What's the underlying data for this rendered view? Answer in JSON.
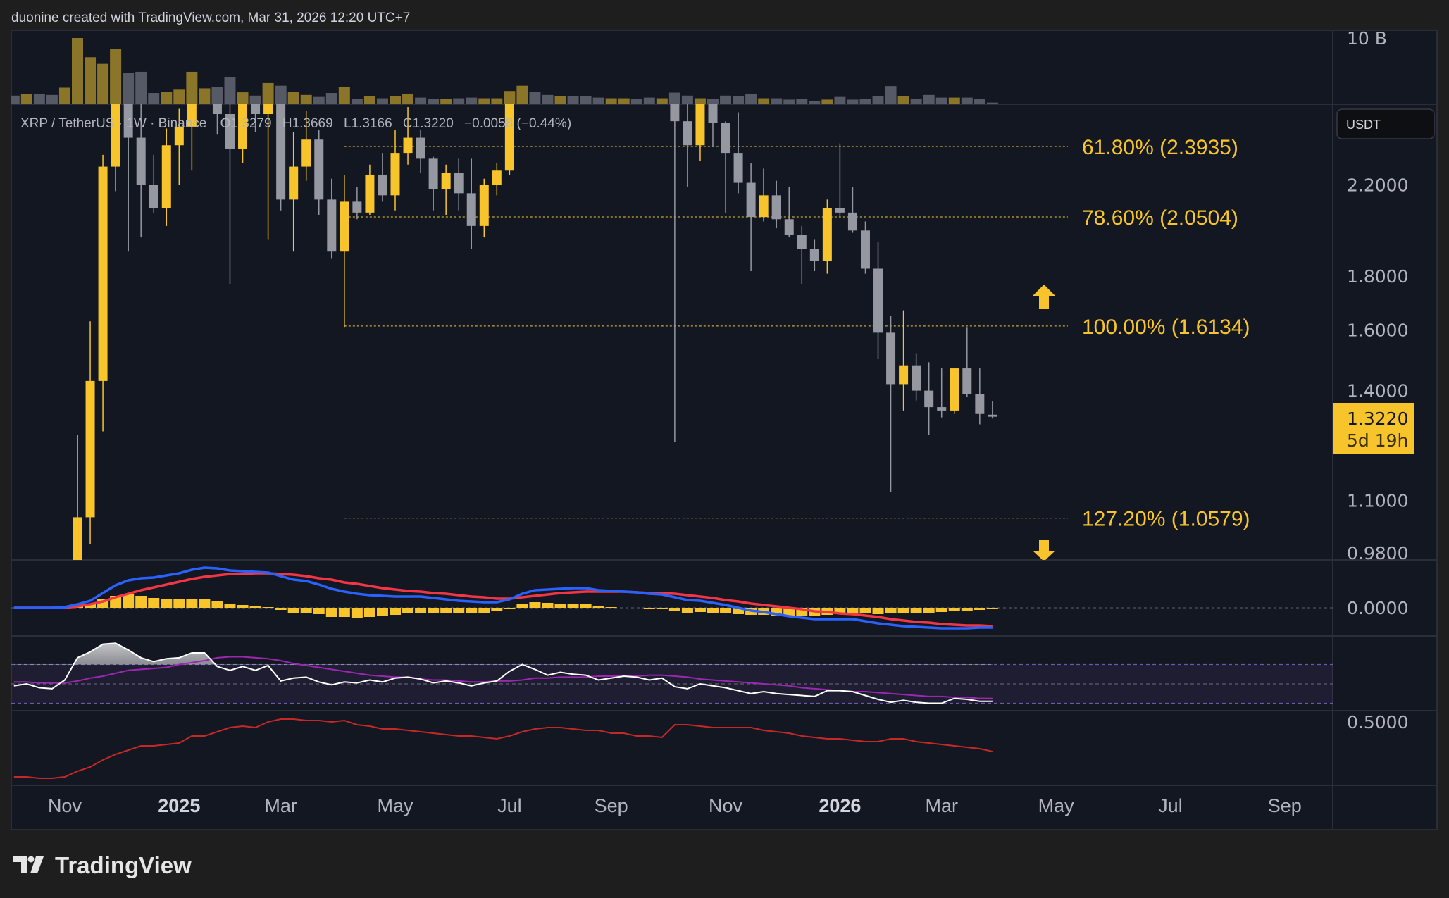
{
  "header": {
    "attribution": "duonine created with TradingView.com, Mar 31, 2026 12:20 UTC+7"
  },
  "footer": {
    "logo_text": "TradingView"
  },
  "legend": {
    "symbol": "XRP / TetherUS · 1W · Binance",
    "open": "O1.3279",
    "high": "H1.3669",
    "low": "L1.3166",
    "close": "C1.3220",
    "change": "−0.0058 (−0.44%)"
  },
  "price_axis": {
    "currency": "USDT",
    "scale": "log",
    "ticks": [
      {
        "value": 2.2,
        "label": "2.2000"
      },
      {
        "value": 1.8,
        "label": "1.8000"
      },
      {
        "value": 1.6,
        "label": "1.6000"
      },
      {
        "value": 1.4,
        "label": "1.4000"
      },
      {
        "value": 1.1,
        "label": "1.1000"
      },
      {
        "value": 0.98,
        "label": "0.9800"
      }
    ],
    "last_price": "1.3220",
    "countdown": "5d 19h"
  },
  "volume_axis": {
    "label": "10 B",
    "value": 10
  },
  "macd_axis": {
    "label": "0.0000",
    "value": 0
  },
  "indicator_axis": {
    "label": "0.5000",
    "value": 0.5
  },
  "time_axis": [
    {
      "label": "Nov",
      "date": "2024-11-04",
      "bold": false
    },
    {
      "label": "2025",
      "date": "2025-01-06",
      "bold": true
    },
    {
      "label": "Mar",
      "date": "2025-03-03",
      "bold": false
    },
    {
      "label": "May",
      "date": "2025-05-05",
      "bold": false
    },
    {
      "label": "Jul",
      "date": "2025-07-07",
      "bold": false
    },
    {
      "label": "Sep",
      "date": "2025-09-01",
      "bold": false
    },
    {
      "label": "Nov",
      "date": "2025-11-03",
      "bold": false
    },
    {
      "label": "2026",
      "date": "2026-01-05",
      "bold": true
    },
    {
      "label": "Mar",
      "date": "2026-03-02",
      "bold": false
    },
    {
      "label": "May",
      "date": "2026-05-04",
      "bold": false
    },
    {
      "label": "Jul",
      "date": "2026-07-06",
      "bold": false
    },
    {
      "label": "Sep",
      "date": "2026-09-07",
      "bold": false
    }
  ],
  "fibonacci": {
    "anchor_date": "2025-04-07",
    "end_date": "2026-05-18",
    "levels": [
      {
        "label": "61.80% (2.3935)",
        "price": 2.3935
      },
      {
        "label": "78.60% (2.0504)",
        "price": 2.0504
      },
      {
        "label": "100.00% (1.6134)",
        "price": 1.6134
      },
      {
        "label": "127.20% (1.0579)",
        "price": 1.0579
      }
    ]
  },
  "colors": {
    "up": "#f7c52b",
    "down": "#9598a1",
    "vol_up": "#8a7529",
    "vol_down": "#565966",
    "macd": "#2962ff",
    "signal": "#f23645",
    "histogram": "#f7c52b",
    "rsi": "#ffffff",
    "rsi_ma": "#9c27b0",
    "indicator": "#c62828",
    "fib": "#c9a52c",
    "background": "#131722"
  },
  "chart_data": {
    "type": "candlestick",
    "interval": "1W",
    "columns": [
      "date",
      "open",
      "high",
      "low",
      "close",
      "volume_billions"
    ],
    "candles": [
      [
        "2024-10-07",
        0.54,
        0.55,
        0.52,
        0.53,
        1.3
      ],
      [
        "2024-10-14",
        0.53,
        0.55,
        0.52,
        0.54,
        1.5
      ],
      [
        "2024-10-21",
        0.54,
        0.55,
        0.5,
        0.52,
        1.5
      ],
      [
        "2024-10-28",
        0.52,
        0.53,
        0.49,
        0.51,
        1.4
      ],
      [
        "2024-11-04",
        0.51,
        0.6,
        0.5,
        0.57,
        2.5
      ],
      [
        "2024-11-11",
        0.57,
        1.27,
        0.55,
        1.06,
        10.0
      ],
      [
        "2024-11-18",
        1.06,
        1.63,
        1.0,
        1.43,
        7.1
      ],
      [
        "2024-11-25",
        1.43,
        2.35,
        1.28,
        2.29,
        6.1
      ],
      [
        "2024-12-02",
        2.29,
        2.91,
        2.17,
        2.7,
        8.4
      ],
      [
        "2024-12-09",
        2.7,
        2.85,
        1.9,
        2.44,
        4.7
      ],
      [
        "2024-12-16",
        2.44,
        2.7,
        1.96,
        2.2,
        4.9
      ],
      [
        "2024-12-23",
        2.2,
        2.35,
        2.07,
        2.09,
        1.7
      ],
      [
        "2024-12-30",
        2.09,
        2.49,
        2.01,
        2.4,
        1.9
      ],
      [
        "2025-01-06",
        2.4,
        2.6,
        2.2,
        2.5,
        2.2
      ],
      [
        "2025-01-13",
        2.5,
        3.4,
        2.27,
        3.1,
        4.9
      ],
      [
        "2025-01-20",
        3.1,
        3.2,
        2.9,
        3.14,
        2.4
      ],
      [
        "2025-01-27",
        3.14,
        3.18,
        2.46,
        2.57,
        2.6
      ],
      [
        "2025-02-03",
        2.57,
        2.7,
        1.77,
        2.38,
        4.1
      ],
      [
        "2025-02-10",
        2.38,
        2.85,
        2.31,
        2.75,
        1.8
      ],
      [
        "2025-02-17",
        2.75,
        2.8,
        2.47,
        2.57,
        1.3
      ],
      [
        "2025-02-24",
        2.57,
        2.99,
        1.95,
        2.86,
        3.2
      ],
      [
        "2025-03-03",
        2.86,
        2.95,
        2.08,
        2.13,
        2.8
      ],
      [
        "2025-03-10",
        2.13,
        2.47,
        1.9,
        2.29,
        1.9
      ],
      [
        "2025-03-17",
        2.29,
        2.59,
        2.22,
        2.43,
        1.4
      ],
      [
        "2025-03-24",
        2.43,
        2.48,
        2.06,
        2.13,
        1.1
      ],
      [
        "2025-03-31",
        2.13,
        2.23,
        1.87,
        1.9,
        1.7
      ],
      [
        "2025-04-07",
        1.9,
        2.25,
        1.61,
        2.12,
        2.6
      ],
      [
        "2025-04-14",
        2.12,
        2.19,
        2.04,
        2.07,
        0.8
      ],
      [
        "2025-04-21",
        2.07,
        2.3,
        2.06,
        2.25,
        1.2
      ],
      [
        "2025-04-28",
        2.25,
        2.36,
        2.12,
        2.15,
        0.9
      ],
      [
        "2025-05-05",
        2.15,
        2.48,
        2.08,
        2.36,
        1.2
      ],
      [
        "2025-05-12",
        2.36,
        2.61,
        2.3,
        2.44,
        1.6
      ],
      [
        "2025-05-19",
        2.44,
        2.48,
        2.26,
        2.33,
        1.0
      ],
      [
        "2025-05-26",
        2.33,
        2.34,
        2.08,
        2.18,
        0.8
      ],
      [
        "2025-06-02",
        2.18,
        2.3,
        2.06,
        2.26,
        0.8
      ],
      [
        "2025-06-09",
        2.26,
        2.33,
        2.08,
        2.16,
        0.9
      ],
      [
        "2025-06-16",
        2.16,
        2.33,
        1.91,
        2.01,
        1.0
      ],
      [
        "2025-06-23",
        2.01,
        2.23,
        1.96,
        2.2,
        0.9
      ],
      [
        "2025-06-30",
        2.2,
        2.31,
        2.15,
        2.27,
        0.9
      ],
      [
        "2025-07-07",
        2.27,
        3.0,
        2.25,
        2.93,
        2.0
      ],
      [
        "2025-07-14",
        2.93,
        3.66,
        2.9,
        3.52,
        2.8
      ],
      [
        "2025-07-21",
        3.52,
        3.6,
        3.05,
        3.17,
        1.85
      ],
      [
        "2025-07-28",
        3.17,
        3.2,
        2.85,
        2.95,
        1.4
      ],
      [
        "2025-08-04",
        2.95,
        3.38,
        2.9,
        3.08,
        1.2
      ],
      [
        "2025-08-11",
        3.08,
        3.3,
        2.95,
        3.0,
        1.2
      ],
      [
        "2025-08-18",
        3.0,
        3.1,
        2.82,
        2.85,
        1.2
      ],
      [
        "2025-08-25",
        2.85,
        2.9,
        2.7,
        2.8,
        1.0
      ],
      [
        "2025-09-01",
        2.8,
        3.0,
        2.72,
        2.95,
        0.9
      ],
      [
        "2025-09-08",
        2.95,
        3.1,
        2.85,
        3.05,
        0.9
      ],
      [
        "2025-09-15",
        3.05,
        3.18,
        2.95,
        3.0,
        0.8
      ],
      [
        "2025-09-22",
        3.0,
        3.02,
        2.69,
        2.8,
        1.0
      ],
      [
        "2025-09-29",
        2.8,
        3.05,
        2.75,
        2.97,
        0.9
      ],
      [
        "2025-10-06",
        2.97,
        3.1,
        1.25,
        2.53,
        1.75
      ],
      [
        "2025-10-13",
        2.53,
        2.65,
        2.19,
        2.4,
        1.3
      ],
      [
        "2025-10-20",
        2.4,
        2.7,
        2.32,
        2.65,
        0.9
      ],
      [
        "2025-10-27",
        2.65,
        2.7,
        2.39,
        2.52,
        0.8
      ],
      [
        "2025-11-03",
        2.52,
        2.53,
        2.07,
        2.36,
        1.3
      ],
      [
        "2025-11-10",
        2.36,
        2.58,
        2.16,
        2.21,
        1.2
      ],
      [
        "2025-11-17",
        2.21,
        2.31,
        1.82,
        2.05,
        1.6
      ],
      [
        "2025-11-24",
        2.05,
        2.28,
        2.03,
        2.15,
        0.9
      ],
      [
        "2025-12-01",
        2.15,
        2.22,
        2.0,
        2.04,
        0.9
      ],
      [
        "2025-12-08",
        2.04,
        2.19,
        1.96,
        1.97,
        0.7
      ],
      [
        "2025-12-15",
        1.97,
        2.01,
        1.77,
        1.91,
        0.8
      ],
      [
        "2025-12-22",
        1.91,
        1.95,
        1.82,
        1.86,
        0.5
      ],
      [
        "2025-12-29",
        1.86,
        2.13,
        1.81,
        2.09,
        0.7
      ],
      [
        "2026-01-05",
        2.09,
        2.41,
        2.05,
        2.07,
        1.1
      ],
      [
        "2026-01-12",
        2.07,
        2.19,
        1.98,
        1.99,
        0.7
      ],
      [
        "2026-01-19",
        1.99,
        2.03,
        1.81,
        1.83,
        0.8
      ],
      [
        "2026-01-26",
        1.83,
        1.94,
        1.5,
        1.59,
        1.2
      ],
      [
        "2026-02-02",
        1.59,
        1.65,
        1.12,
        1.42,
        2.75
      ],
      [
        "2026-02-09",
        1.42,
        1.67,
        1.34,
        1.48,
        1.2
      ],
      [
        "2026-02-16",
        1.48,
        1.52,
        1.37,
        1.4,
        0.8
      ],
      [
        "2026-02-23",
        1.4,
        1.49,
        1.27,
        1.35,
        1.4
      ],
      [
        "2026-03-02",
        1.35,
        1.47,
        1.32,
        1.34,
        1.0
      ],
      [
        "2026-03-09",
        1.34,
        1.47,
        1.33,
        1.47,
        1.0
      ],
      [
        "2026-03-16",
        1.47,
        1.61,
        1.38,
        1.39,
        1.0
      ],
      [
        "2026-03-23",
        1.39,
        1.47,
        1.3,
        1.33,
        0.8
      ],
      [
        "2026-03-30",
        1.3279,
        1.3669,
        1.3166,
        1.322,
        0.25
      ]
    ],
    "macd": [
      0,
      0,
      0,
      0,
      0.01,
      0.05,
      0.1,
      0.21,
      0.32,
      0.39,
      0.42,
      0.43,
      0.46,
      0.49,
      0.54,
      0.57,
      0.56,
      0.53,
      0.52,
      0.51,
      0.5,
      0.45,
      0.4,
      0.38,
      0.33,
      0.27,
      0.23,
      0.2,
      0.18,
      0.17,
      0.16,
      0.16,
      0.16,
      0.14,
      0.12,
      0.1,
      0.09,
      0.08,
      0.08,
      0.12,
      0.2,
      0.25,
      0.26,
      0.27,
      0.28,
      0.28,
      0.25,
      0.24,
      0.23,
      0.22,
      0.2,
      0.19,
      0.15,
      0.11,
      0.1,
      0.07,
      0.04,
      0.0,
      -0.04,
      -0.06,
      -0.09,
      -0.12,
      -0.14,
      -0.16,
      -0.16,
      -0.16,
      -0.16,
      -0.19,
      -0.22,
      -0.24,
      -0.26,
      -0.27,
      -0.28,
      -0.29,
      -0.29,
      -0.29,
      -0.28,
      -0.28
    ],
    "macd_signal": [
      0,
      0,
      0,
      0,
      0,
      0.02,
      0.05,
      0.09,
      0.15,
      0.2,
      0.25,
      0.29,
      0.33,
      0.37,
      0.41,
      0.44,
      0.46,
      0.48,
      0.48,
      0.49,
      0.49,
      0.48,
      0.47,
      0.45,
      0.42,
      0.4,
      0.36,
      0.34,
      0.31,
      0.28,
      0.26,
      0.24,
      0.23,
      0.21,
      0.2,
      0.18,
      0.16,
      0.15,
      0.13,
      0.13,
      0.15,
      0.17,
      0.19,
      0.21,
      0.22,
      0.23,
      0.23,
      0.23,
      0.23,
      0.22,
      0.21,
      0.21,
      0.2,
      0.18,
      0.16,
      0.14,
      0.11,
      0.09,
      0.06,
      0.04,
      0.02,
      0.0,
      -0.02,
      -0.05,
      -0.06,
      -0.08,
      -0.09,
      -0.11,
      -0.13,
      -0.16,
      -0.18,
      -0.2,
      -0.21,
      -0.23,
      -0.24,
      -0.25,
      -0.25,
      -0.26
    ],
    "rsi": [
      48,
      50,
      46,
      45,
      54,
      77,
      83,
      91,
      92,
      85,
      77,
      73,
      76,
      77,
      82,
      82,
      68,
      64,
      68,
      64,
      69,
      53,
      56,
      57,
      52,
      49,
      52,
      51,
      54,
      52,
      56,
      57,
      55,
      51,
      53,
      51,
      48,
      51,
      53,
      63,
      70,
      65,
      59,
      62,
      60,
      59,
      54,
      56,
      58,
      57,
      54,
      56,
      47,
      45,
      50,
      48,
      46,
      43,
      40,
      42,
      40,
      39,
      38,
      37,
      43,
      43,
      42,
      38,
      34,
      31,
      33,
      31,
      30,
      30,
      35,
      34,
      32,
      32
    ],
    "rsi_ma": [
      52,
      52,
      51,
      51,
      51,
      53,
      56,
      58,
      61,
      64,
      65,
      66,
      67,
      70,
      72,
      74,
      77,
      78,
      78,
      77,
      76,
      74,
      71,
      69,
      67,
      65,
      63,
      61,
      59,
      58,
      57,
      57,
      55,
      54,
      54,
      53,
      52,
      52,
      53,
      53,
      54,
      56,
      56,
      57,
      57,
      57,
      58,
      58,
      58,
      58,
      59,
      59,
      58,
      57,
      55,
      54,
      53,
      52,
      51,
      50,
      49,
      48,
      46,
      45,
      44,
      43,
      42,
      42,
      41,
      40,
      39,
      38,
      37,
      37,
      36,
      36,
      35,
      35
    ],
    "rsi_bands": [
      70,
      50,
      30
    ],
    "indicator": [
      0.11,
      0.11,
      0.1,
      0.1,
      0.11,
      0.15,
      0.18,
      0.23,
      0.27,
      0.3,
      0.33,
      0.33,
      0.34,
      0.35,
      0.4,
      0.4,
      0.43,
      0.46,
      0.47,
      0.46,
      0.5,
      0.52,
      0.52,
      0.51,
      0.51,
      0.5,
      0.51,
      0.48,
      0.47,
      0.45,
      0.45,
      0.44,
      0.43,
      0.42,
      0.41,
      0.4,
      0.4,
      0.39,
      0.38,
      0.4,
      0.43,
      0.45,
      0.46,
      0.46,
      0.45,
      0.44,
      0.44,
      0.42,
      0.42,
      0.4,
      0.4,
      0.39,
      0.48,
      0.48,
      0.47,
      0.46,
      0.46,
      0.46,
      0.46,
      0.44,
      0.43,
      0.42,
      0.4,
      0.39,
      0.38,
      0.38,
      0.37,
      0.36,
      0.36,
      0.38,
      0.38,
      0.36,
      0.35,
      0.34,
      0.33,
      0.32,
      0.31,
      0.29
    ]
  }
}
